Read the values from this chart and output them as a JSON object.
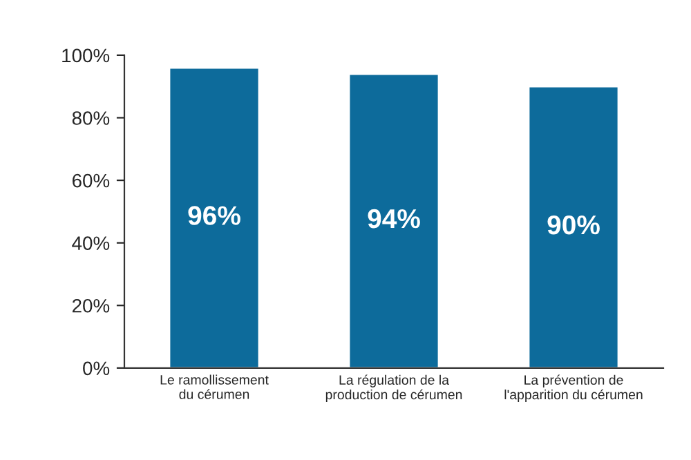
{
  "chart_data": {
    "type": "bar",
    "categories": [
      "Le ramollissement\ndu cérumen",
      "La régulation de la\nproduction de cérumen",
      "La prévention de\nl'apparition du cérumen"
    ],
    "values": [
      96,
      94,
      90
    ],
    "color": "#0d6b9b",
    "value_labels": [
      "96%",
      "94%",
      "90%"
    ],
    "ylim": [
      0,
      100
    ],
    "yticks": [
      {
        "value": 0,
        "label": "0%"
      },
      {
        "value": 20,
        "label": "20%"
      },
      {
        "value": 40,
        "label": "40%"
      },
      {
        "value": 60,
        "label": "60%"
      },
      {
        "value": 80,
        "label": "80%"
      },
      {
        "value": 100,
        "label": "100%"
      }
    ],
    "grid": false
  }
}
